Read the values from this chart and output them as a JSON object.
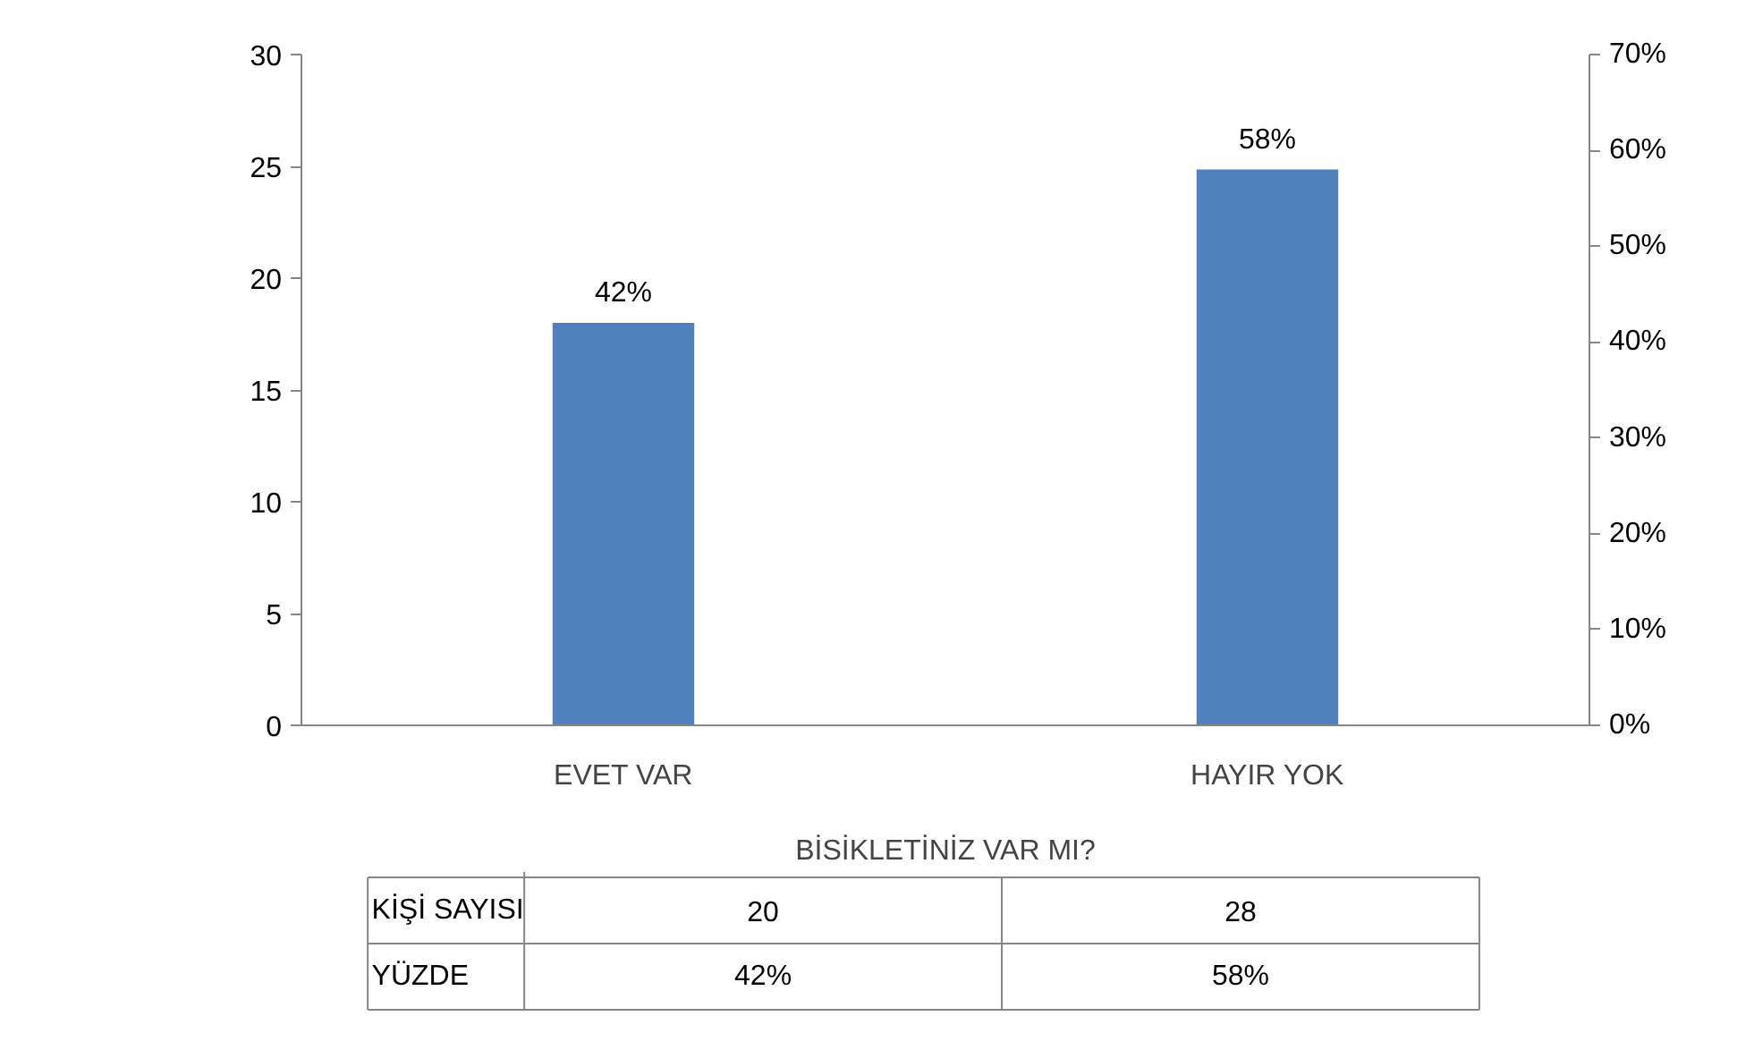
{
  "chart_data": {
    "type": "bar",
    "categories": [
      "EVET VAR",
      "HAYIR YOK"
    ],
    "xlabel": "BİSİKLETİNİZ VAR MI?",
    "series": [
      {
        "color": "#4f81bd",
        "values": [
          42,
          58
        ],
        "axis": "y2",
        "value_labels": [
          "42%",
          "58%"
        ]
      }
    ],
    "ylim": [
      0,
      30
    ],
    "yticks": [
      0,
      5,
      10,
      15,
      20,
      25,
      30
    ],
    "y2lim": [
      0,
      70
    ],
    "y2ticks": [
      {
        "value": 0,
        "label": "0%"
      },
      {
        "value": 10,
        "label": "10%"
      },
      {
        "value": 20,
        "label": "20%"
      },
      {
        "value": 30,
        "label": "30%"
      },
      {
        "value": 40,
        "label": "40%"
      },
      {
        "value": 50,
        "label": "50%"
      },
      {
        "value": 60,
        "label": "60%"
      },
      {
        "value": 70,
        "label": "70%"
      }
    ],
    "annotations": [
      "KİŞİ SAYISI",
      "20",
      "28",
      "YÜZDE",
      "42%",
      "58%"
    ],
    "grid": false
  }
}
